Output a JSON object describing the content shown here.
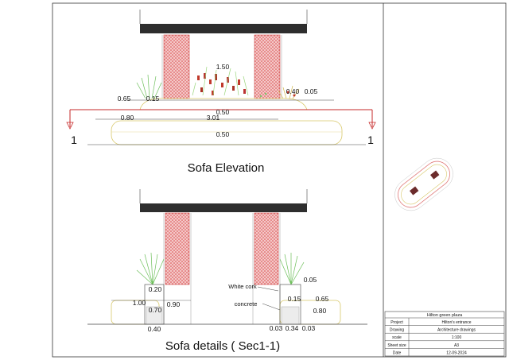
{
  "sheet": {
    "elevation": {
      "title": "Sofa Elevation",
      "dims": {
        "height_center": "1.50",
        "left_depth": "0.65",
        "left_planter": "0.15",
        "right_planter": "0.40",
        "right_gap": "0.05",
        "top_seat": "0.50",
        "left_seat": "0.80",
        "overall_length": "3.01",
        "bottom_seat": "0.50"
      },
      "section_marker_left": "1",
      "section_marker_right": "1"
    },
    "section": {
      "title": "Sofa details ( Sec1-1)",
      "dims": {
        "left_top": "0.20",
        "left_height": "1.00",
        "left_back": "0.90",
        "left_mid": "0.70",
        "left_bottom": "0.40",
        "right_top": "0.05",
        "right_small": "0.15",
        "right_seat": "0.65",
        "right_height": "0.80",
        "right_bottom_a": "0.03",
        "right_bottom_b": "0.34",
        "right_bottom_c": "0.03"
      },
      "labels": {
        "white_cork": "White cork",
        "concrete": "concrete"
      }
    },
    "title_block": {
      "project_name": "Hilton green plaza",
      "rows": [
        {
          "key": "Project",
          "value": "Hilton's entrance"
        },
        {
          "key": "Drawing",
          "value": "Architecture drawings"
        },
        {
          "key": "scale",
          "value": "1:100"
        },
        {
          "key": "Sheet size",
          "value": "A3"
        },
        {
          "key": "Date",
          "value": "12-09-2024"
        }
      ]
    },
    "colors": {
      "line": "#111111",
      "beam": "#2e2e2e",
      "panel": "#e06b6b",
      "plant": "#7cc96b",
      "outline": "#d8c86a",
      "section_red": "#c62828"
    }
  }
}
